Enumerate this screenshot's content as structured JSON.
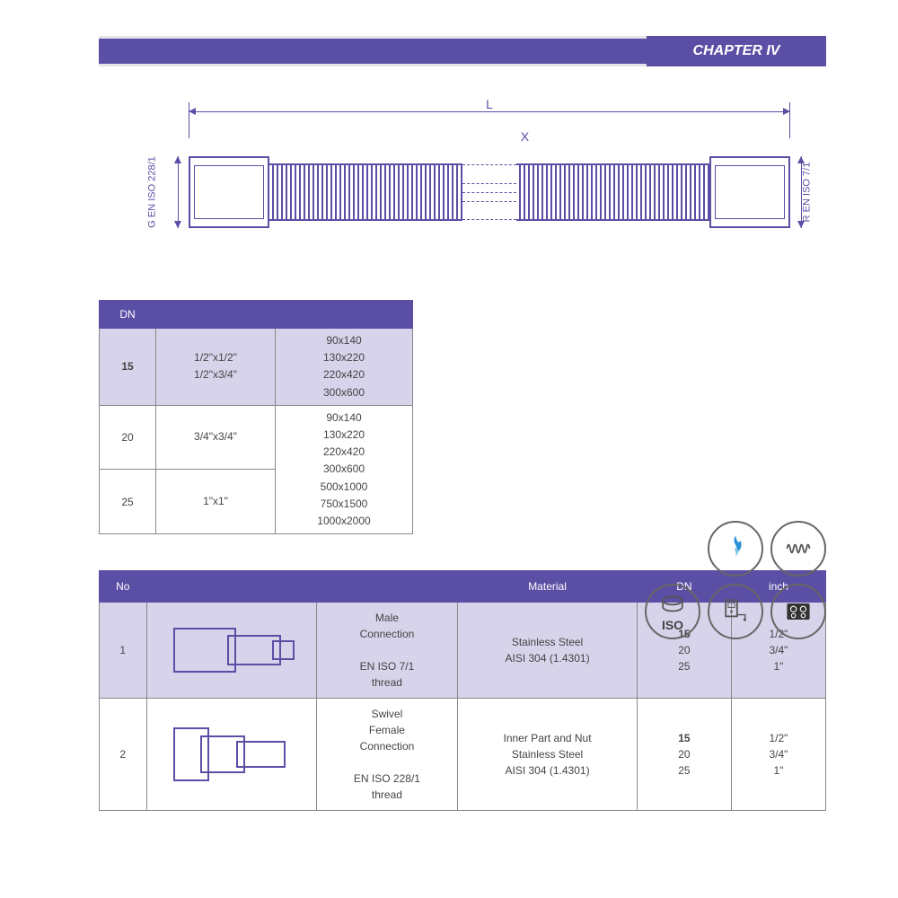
{
  "chapter": "CHAPTER IV",
  "diagram": {
    "dim_L": "L",
    "dim_X": "X",
    "left_std": "G EN ISO 228/1",
    "right_std": "R EN ISO 7/1"
  },
  "colors": {
    "brand": "#5a4fa5",
    "hl_row": "#d7d3ea",
    "border": "#888888"
  },
  "table1": {
    "header": [
      "DN",
      "",
      ""
    ],
    "rows": [
      {
        "dn": "15",
        "sizes": "1/2\"x1/2\"\n1/2\"x3/4\"",
        "dims": "90x140\n130x220\n220x420\n300x600",
        "hl": true,
        "span_dims": false
      },
      {
        "dn": "20",
        "sizes": "3/4\"x3/4\"",
        "dims": "90x140\n130x220\n220x420\n300x600\n500x1000\n750x1500\n1000x2000",
        "merge_with_next": true
      },
      {
        "dn": "25",
        "sizes": "1\"x1\"",
        "dims": ""
      }
    ]
  },
  "icons": {
    "gas": "gas",
    "coil": "coil",
    "iso": "ISO",
    "heater": "heater",
    "hob": "hob"
  },
  "table2": {
    "header": [
      "No",
      "",
      "",
      "Material",
      "DN",
      "inch"
    ],
    "rows": [
      {
        "no": "1",
        "desc": "Male\nConnection\n\nEN ISO 7/1\nthread",
        "material": "Stainless Steel\nAISI 304 (1.4301)",
        "dn": "15\n20\n25",
        "inch": "1/2\"\n3/4\"\n1\"",
        "hl": true,
        "bold_dn": "15",
        "swivel": false
      },
      {
        "no": "2",
        "desc": "Swivel\nFemale\nConnection\n\nEN ISO 228/1\nthread",
        "material": "Inner Part and Nut\nStainless Steel\nAISI 304 (1.4301)",
        "dn": "15\n20\n25",
        "inch": "1/2\"\n3/4\"\n1\"",
        "hl": false,
        "bold_dn": "15",
        "swivel": true
      }
    ]
  }
}
